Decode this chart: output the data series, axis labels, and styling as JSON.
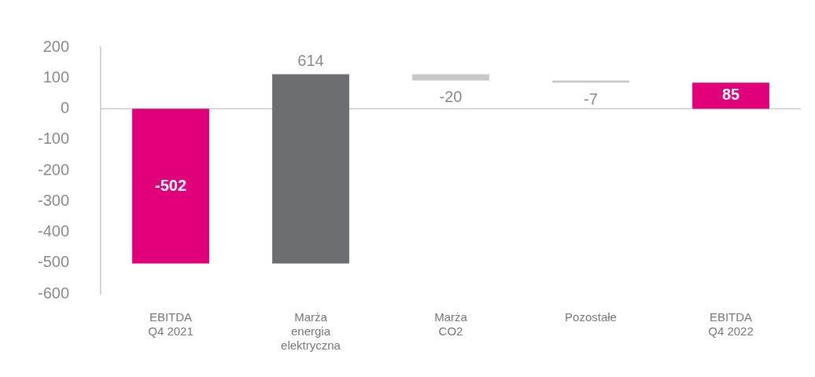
{
  "chart_data": {
    "type": "bar",
    "categories": [
      "EBITDA\nQ4 2021",
      "Marża\nenergia\nelektryczna",
      "Marża\nCO2",
      "Pozostałe",
      "EBITDA\nQ4 2022"
    ],
    "values": [
      -502,
      614,
      -20,
      -7,
      85
    ],
    "base": [
      0,
      -502,
      112,
      92,
      0
    ],
    "colors": [
      "#e2007a",
      "#6d6e71",
      "#c8c8c8",
      "#c8c8c8",
      "#e2007a"
    ],
    "ylim": [
      -600,
      200
    ],
    "yticks": [
      -600,
      -500,
      -400,
      -300,
      -200,
      -100,
      0,
      100,
      200
    ],
    "ref_lines": [
      {
        "axis": "y",
        "value": 0,
        "color": "#c8c8c8"
      }
    ],
    "data_labels": true,
    "grid": false,
    "legend": false
  }
}
